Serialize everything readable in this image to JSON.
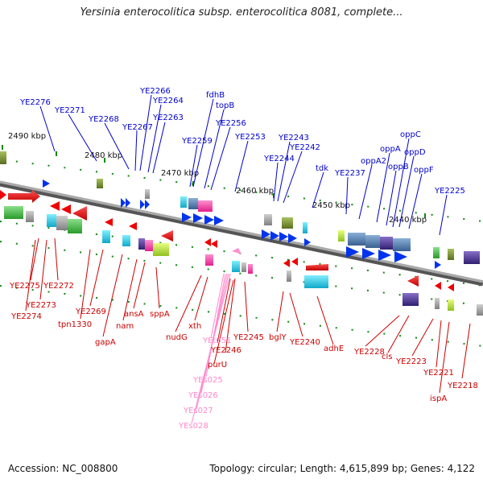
{
  "title": "Yersinia enterocolitica subsp. enterocolitica 8081, complete...",
  "footer": {
    "accession": "Accession: NC_008800",
    "summary": "Topology: circular; Length: 4,615,899 bp; Genes: 4,122"
  },
  "colors": {
    "forward_label": "#0000cc",
    "reverse_label": "#cc0000",
    "rna_label": "#ff88cc",
    "forward_gene": "#0033ee",
    "reverse_gene": "#ee0000",
    "backbone": "#888888",
    "tick": "#118811"
  },
  "ticks": [
    "2490 kbp",
    "2480 kbp",
    "2470 kbp",
    "2460 kbp",
    "2450 kbp",
    "2440 kbp"
  ],
  "genes_top": [
    "YE2276",
    "YE2271",
    "YE2268",
    "YE2267",
    "YE2266",
    "YE2264",
    "YE2263",
    "fdhB",
    "topB",
    "YE2259",
    "YE2256",
    "YE2253",
    "YE2244",
    "YE2243",
    "YE2242",
    "tdk",
    "YE2237",
    "oppA2",
    "oppA",
    "oppB",
    "oppC",
    "oppD",
    "oppF",
    "YE2225"
  ],
  "genes_bottom": [
    "YE2275",
    "YE2272",
    "YE2273",
    "YE2274",
    "YE2269",
    "tpn1330",
    "gapA",
    "nam",
    "ansA",
    "sppA",
    "nudG",
    "xth",
    "YEt051",
    "YE2246",
    "YE2245",
    "purU",
    "bglY",
    "YE2240",
    "adhE",
    "YE2228",
    "cls",
    "YE2223",
    "YE2221",
    "ispA",
    "YE2218"
  ],
  "genes_rna": [
    "YEs025",
    "YEs026",
    "YEs027",
    "YEs028"
  ]
}
